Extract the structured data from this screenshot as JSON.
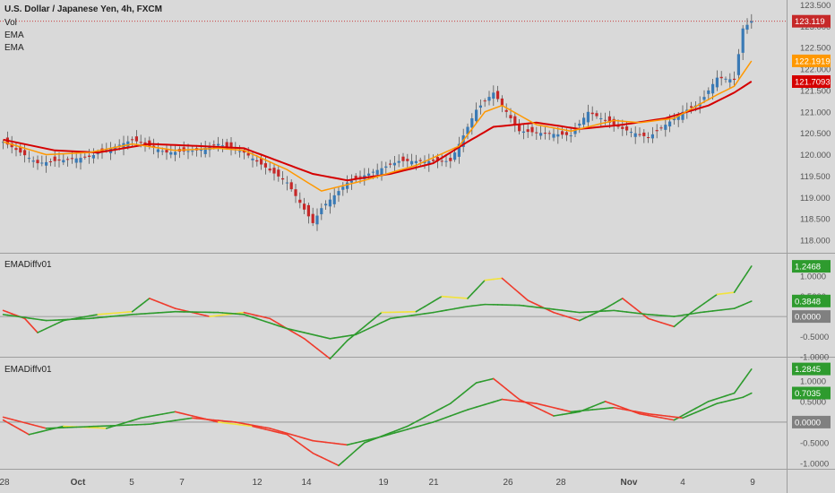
{
  "colors": {
    "background": "#d9d9d9",
    "candle_up": "#3a7ab5",
    "candle_down": "#c62828",
    "ema_fast": "#ff9800",
    "ema_slow": "#d50000",
    "osc_green": "#2e9b2e",
    "osc_red": "#ef3b2c",
    "osc_yellow": "#f2e33c",
    "text": "#222222",
    "axis_text": "#555555"
  },
  "legend": {
    "symbol": "U.S. Dollar / Japanese Yen, 4h, FXCM",
    "vol": "Vol",
    "ema1": "EMA",
    "ema2": "EMA"
  },
  "panes": {
    "pane1_title": "EMADiffv01",
    "pane2_title": "EMADiffv01"
  },
  "x_axis": {
    "labels": [
      "28",
      "Oct",
      "5",
      "7",
      "12",
      "14",
      "19",
      "21",
      "26",
      "28",
      "Nov",
      "4",
      "9"
    ]
  },
  "chart_data": [
    {
      "type": "candlestick",
      "title": "U.S. Dollar / Japanese Yen, 4h, FXCM",
      "ylim": [
        117.75,
        123.6
      ],
      "y_ticks": [
        "123.500",
        "123.000",
        "122.500",
        "122.000",
        "121.500",
        "121.000",
        "120.500",
        "120.000",
        "119.500",
        "119.000",
        "118.500",
        "118.000"
      ],
      "price_labels": [
        {
          "value": "123.119",
          "color": "#c62828"
        },
        {
          "value": "122.1919",
          "color": "#ff9800"
        },
        {
          "value": "121.7093",
          "color": "#d50000"
        }
      ],
      "anchors": {
        "close": [
          [
            0,
            120.3
          ],
          [
            8,
            119.8
          ],
          [
            20,
            119.95
          ],
          [
            30,
            120.35
          ],
          [
            38,
            120.05
          ],
          [
            45,
            120.1
          ],
          [
            50,
            120.25
          ],
          [
            56,
            120.05
          ],
          [
            66,
            119.35
          ],
          [
            72,
            118.4
          ],
          [
            74,
            118.75
          ],
          [
            80,
            119.35
          ],
          [
            92,
            119.85
          ],
          [
            104,
            119.85
          ],
          [
            110,
            121.05
          ],
          [
            114,
            121.45
          ],
          [
            120,
            120.55
          ],
          [
            132,
            120.45
          ],
          [
            136,
            121.0
          ],
          [
            144,
            120.6
          ],
          [
            150,
            120.4
          ],
          [
            158,
            121.0
          ],
          [
            162,
            121.2
          ],
          [
            166,
            121.8
          ],
          [
            170,
            121.75
          ],
          [
            172,
            122.95
          ],
          [
            174,
            123.12
          ]
        ]
      },
      "ema_fast_anchors": [
        [
          0,
          120.3
        ],
        [
          10,
          120.0
        ],
        [
          20,
          120.05
        ],
        [
          30,
          120.25
        ],
        [
          40,
          120.1
        ],
        [
          50,
          120.15
        ],
        [
          56,
          120.1
        ],
        [
          66,
          119.65
        ],
        [
          74,
          119.15
        ],
        [
          84,
          119.4
        ],
        [
          96,
          119.75
        ],
        [
          106,
          120.2
        ],
        [
          112,
          121.0
        ],
        [
          116,
          121.15
        ],
        [
          124,
          120.7
        ],
        [
          132,
          120.55
        ],
        [
          142,
          120.8
        ],
        [
          148,
          120.75
        ],
        [
          156,
          120.85
        ],
        [
          166,
          121.4
        ],
        [
          170,
          121.6
        ],
        [
          174,
          122.19
        ]
      ],
      "ema_slow_anchors": [
        [
          0,
          120.35
        ],
        [
          12,
          120.1
        ],
        [
          22,
          120.05
        ],
        [
          34,
          120.25
        ],
        [
          46,
          120.2
        ],
        [
          56,
          120.15
        ],
        [
          64,
          119.85
        ],
        [
          72,
          119.55
        ],
        [
          80,
          119.4
        ],
        [
          90,
          119.55
        ],
        [
          100,
          119.8
        ],
        [
          108,
          120.3
        ],
        [
          114,
          120.65
        ],
        [
          124,
          120.75
        ],
        [
          134,
          120.6
        ],
        [
          144,
          120.7
        ],
        [
          154,
          120.85
        ],
        [
          164,
          121.15
        ],
        [
          170,
          121.45
        ],
        [
          174,
          121.71
        ]
      ]
    },
    {
      "type": "line",
      "title": "EMADiffv01",
      "ylim": [
        -1.0,
        1.45
      ],
      "y_ticks": [
        "1.0000",
        "0.5000",
        "0.0000",
        "-0.5000",
        "-1.0000"
      ],
      "value_labels": [
        {
          "value": "1.2468",
          "color": "#2e9b2e"
        },
        {
          "value": "0.3848",
          "color": "#2e9b2e"
        },
        {
          "value": "0.0000",
          "color": "#808080"
        }
      ],
      "series": [
        {
          "color_mode": "multi",
          "anchors": [
            [
              0,
              0.15
            ],
            [
              5,
              -0.05
            ],
            [
              8,
              -0.4
            ],
            [
              14,
              -0.1
            ],
            [
              22,
              0.05
            ],
            [
              30,
              0.12
            ],
            [
              34,
              0.45
            ],
            [
              40,
              0.2
            ],
            [
              48,
              0.0
            ],
            [
              56,
              0.1
            ],
            [
              62,
              -0.05
            ],
            [
              70,
              -0.55
            ],
            [
              76,
              -1.05
            ],
            [
              80,
              -0.6
            ],
            [
              88,
              0.1
            ],
            [
              96,
              0.12
            ],
            [
              102,
              0.5
            ],
            [
              108,
              0.45
            ],
            [
              112,
              0.9
            ],
            [
              116,
              0.95
            ],
            [
              122,
              0.4
            ],
            [
              128,
              0.1
            ],
            [
              134,
              -0.1
            ],
            [
              140,
              0.2
            ],
            [
              144,
              0.45
            ],
            [
              150,
              -0.05
            ],
            [
              156,
              -0.25
            ],
            [
              160,
              0.1
            ],
            [
              166,
              0.55
            ],
            [
              170,
              0.6
            ],
            [
              174,
              1.25
            ]
          ]
        },
        {
          "color_mode": "green",
          "anchors": [
            [
              0,
              0.05
            ],
            [
              10,
              -0.1
            ],
            [
              20,
              -0.05
            ],
            [
              30,
              0.05
            ],
            [
              40,
              0.12
            ],
            [
              50,
              0.1
            ],
            [
              56,
              0.05
            ],
            [
              66,
              -0.3
            ],
            [
              76,
              -0.55
            ],
            [
              82,
              -0.45
            ],
            [
              90,
              -0.05
            ],
            [
              100,
              0.1
            ],
            [
              108,
              0.25
            ],
            [
              112,
              0.3
            ],
            [
              120,
              0.28
            ],
            [
              128,
              0.18
            ],
            [
              134,
              0.1
            ],
            [
              142,
              0.15
            ],
            [
              150,
              0.05
            ],
            [
              156,
              0.0
            ],
            [
              162,
              0.1
            ],
            [
              170,
              0.2
            ],
            [
              174,
              0.38
            ]
          ]
        }
      ]
    },
    {
      "type": "line",
      "title": "EMADiffv01",
      "ylim": [
        -1.15,
        1.45
      ],
      "y_ticks": [
        "1.0000",
        "0.5000",
        "0.0000",
        "-0.5000",
        "-1.0000"
      ],
      "value_labels": [
        {
          "value": "1.2845",
          "color": "#2e9b2e"
        },
        {
          "value": "0.7035",
          "color": "#2e9b2e"
        },
        {
          "value": "0.0000",
          "color": "#808080"
        }
      ],
      "series": [
        {
          "color_mode": "multi",
          "anchors": [
            [
              0,
              0.05
            ],
            [
              6,
              -0.3
            ],
            [
              14,
              -0.1
            ],
            [
              24,
              -0.15
            ],
            [
              32,
              0.1
            ],
            [
              40,
              0.25
            ],
            [
              50,
              0.0
            ],
            [
              58,
              -0.1
            ],
            [
              66,
              -0.3
            ],
            [
              72,
              -0.75
            ],
            [
              78,
              -1.05
            ],
            [
              84,
              -0.5
            ],
            [
              94,
              -0.1
            ],
            [
              104,
              0.45
            ],
            [
              110,
              0.95
            ],
            [
              114,
              1.05
            ],
            [
              120,
              0.55
            ],
            [
              128,
              0.15
            ],
            [
              134,
              0.25
            ],
            [
              140,
              0.5
            ],
            [
              148,
              0.2
            ],
            [
              156,
              0.05
            ],
            [
              164,
              0.5
            ],
            [
              170,
              0.7
            ],
            [
              174,
              1.28
            ]
          ]
        },
        {
          "color_mode": "two",
          "anchors": [
            [
              0,
              0.12
            ],
            [
              10,
              -0.15
            ],
            [
              22,
              -0.1
            ],
            [
              34,
              -0.05
            ],
            [
              44,
              0.1
            ],
            [
              54,
              0.0
            ],
            [
              62,
              -0.15
            ],
            [
              72,
              -0.45
            ],
            [
              80,
              -0.55
            ],
            [
              88,
              -0.35
            ],
            [
              100,
              0.0
            ],
            [
              108,
              0.3
            ],
            [
              116,
              0.55
            ],
            [
              124,
              0.45
            ],
            [
              132,
              0.25
            ],
            [
              142,
              0.35
            ],
            [
              150,
              0.2
            ],
            [
              158,
              0.1
            ],
            [
              166,
              0.45
            ],
            [
              172,
              0.6
            ],
            [
              174,
              0.7
            ]
          ]
        }
      ]
    }
  ]
}
